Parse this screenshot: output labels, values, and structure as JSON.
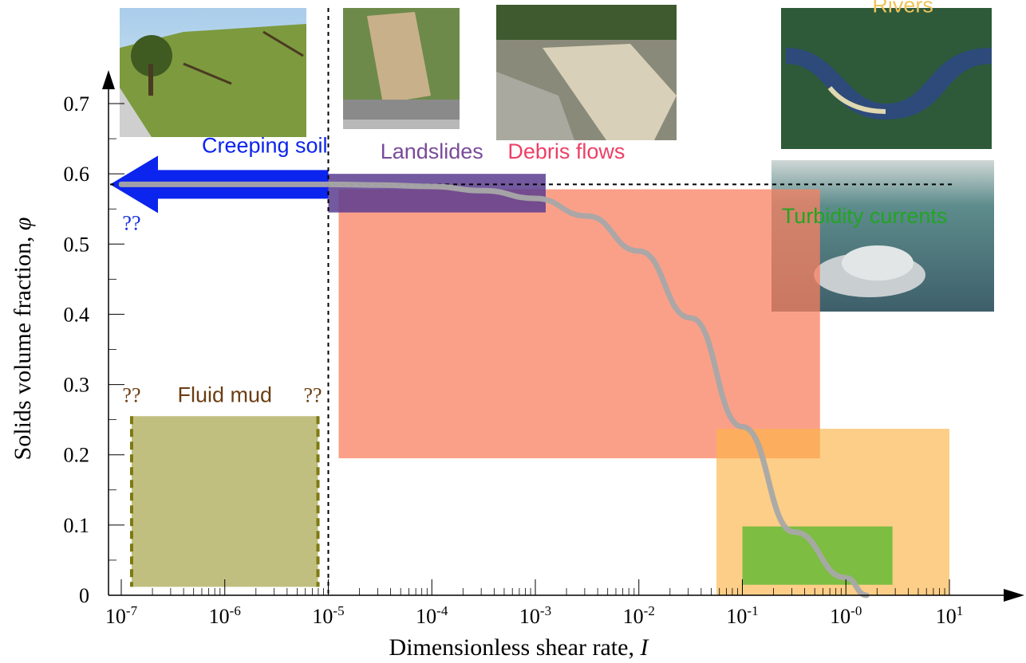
{
  "chart_data": {
    "type": "area",
    "xlabel": "Dimensionless shear rate, ",
    "xlabel_var": "I",
    "ylabel": "Solids volume fraction, ",
    "ylabel_var": "φ",
    "x_scale": "log",
    "xlim_log10": [
      -7,
      1
    ],
    "ylim": [
      0,
      0.7
    ],
    "x_ticks": [
      {
        "exp": "-7",
        "pos": -7
      },
      {
        "exp": "-6",
        "pos": -6
      },
      {
        "exp": "-5",
        "pos": -5
      },
      {
        "exp": "-4",
        "pos": -4
      },
      {
        "exp": "-3",
        "pos": -3
      },
      {
        "exp": "-2",
        "pos": -2
      },
      {
        "exp": "-1",
        "pos": -1
      },
      {
        "exp": "-0",
        "pos": 0
      },
      {
        "exp": "1",
        "pos": 1
      }
    ],
    "y_ticks": [
      {
        "value": 0,
        "label": "0"
      },
      {
        "value": 0.1,
        "label": "0.1"
      },
      {
        "value": 0.2,
        "label": "0.2"
      },
      {
        "value": 0.3,
        "label": "0.3"
      },
      {
        "value": 0.4,
        "label": "0.4"
      },
      {
        "value": 0.5,
        "label": "0.5"
      },
      {
        "value": 0.6,
        "label": "0.6"
      },
      {
        "value": 0.7,
        "label": "0.7"
      }
    ],
    "reference_lines": {
      "phi_max": 0.585,
      "I_min_log10": -5.0
    },
    "regions": [
      {
        "name": "Debris flows",
        "color": "#fa8060",
        "opacity": 0.75,
        "x_log10": [
          -4.9,
          -0.25
        ],
        "y": [
          0.195,
          0.578
        ],
        "label_color": "#ee3f66",
        "label_x_log10": -2.7,
        "label_y": 0.622
      },
      {
        "name": "Rivers",
        "color": "#fcb347",
        "opacity": 0.65,
        "x_log10": [
          -1.25,
          1.0
        ],
        "y": [
          0.0,
          0.237
        ],
        "label_color": "#f0c35a",
        "label_x_log10": 0.55,
        "label_y": 0.83
      },
      {
        "name": "Turbidity currents",
        "color": "#6fbb3a",
        "opacity": 0.9,
        "x_log10": [
          -1.0,
          0.45
        ],
        "y": [
          0.015,
          0.098
        ],
        "label_color": "#21a522",
        "label_x_log10": 0.18,
        "label_y": 0.53
      },
      {
        "name": "Landslides",
        "color": "#5b3c8f",
        "opacity": 0.85,
        "x_log10": [
          -5.0,
          -2.9
        ],
        "y": [
          0.545,
          0.6
        ],
        "label_color": "#7a4a9a",
        "label_x_log10": -4.0,
        "label_y": 0.622
      },
      {
        "name": "Fluid mud",
        "color": "#b6b46a",
        "opacity": 0.85,
        "x_log10": [
          -6.9,
          -5.1
        ],
        "y": [
          0.012,
          0.255
        ],
        "label_color": "#6b3d12",
        "label_x_log10": -6.0,
        "label_y": 0.275
      }
    ],
    "creeping_soil": {
      "name": "Creeping soil",
      "color": "#0b24ee",
      "x_log10": [
        -7.0,
        -5.0
      ],
      "y": 0.585,
      "label_x_log10": -6.0,
      "label_y": 0.63
    },
    "uncertainty_labels": [
      {
        "text": "??",
        "color": "#1a30e0",
        "x_log10": -6.9,
        "y": 0.52
      },
      {
        "text": "??",
        "color": "#6b3d12",
        "x_log10": -6.9,
        "y": 0.275
      },
      {
        "text": "??",
        "color": "#6b3d12",
        "x_log10": -5.15,
        "y": 0.275
      }
    ],
    "rheology_curve": {
      "color": "#a8a8a8",
      "x_log10": [
        -7.0,
        -5.0,
        -4.5,
        -4.0,
        -3.5,
        -3.0,
        -2.5,
        -2.0,
        -1.5,
        -1.0,
        -0.5,
        0.0,
        0.2
      ],
      "y": [
        0.585,
        0.585,
        0.584,
        0.582,
        0.576,
        0.565,
        0.54,
        0.49,
        0.395,
        0.24,
        0.09,
        0.025,
        0.0
      ]
    }
  }
}
